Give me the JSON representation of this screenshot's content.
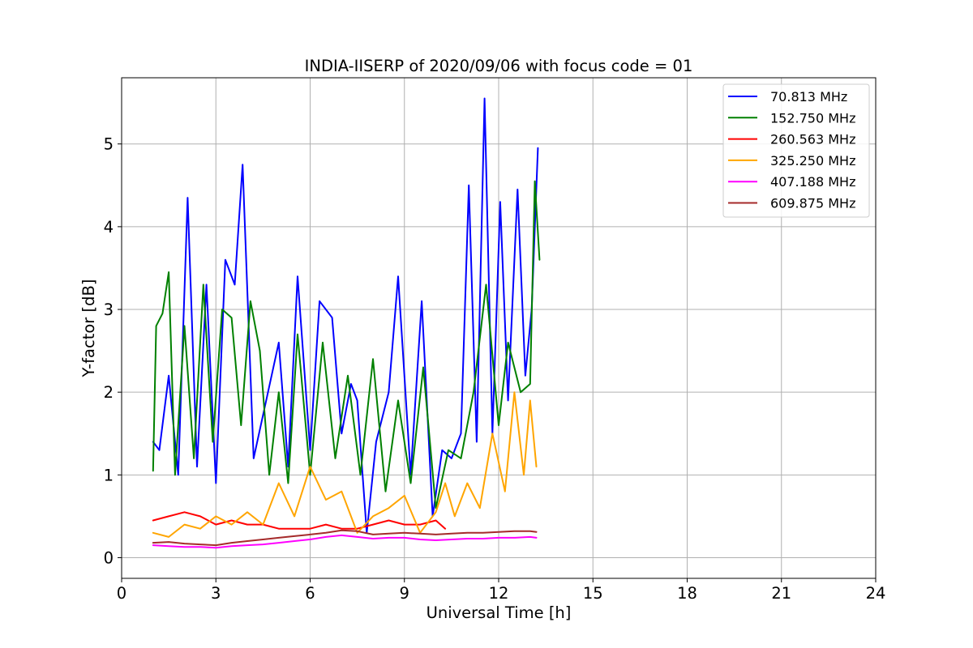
{
  "chart_data": {
    "type": "line",
    "title": "INDIA-IISERP of 2020/09/06 with focus code = 01",
    "xlabel": "Universal Time [h]",
    "ylabel": "Y-factor [dB]",
    "xlim": [
      0,
      24
    ],
    "ylim": [
      -0.25,
      5.8
    ],
    "xticks": [
      0,
      3,
      6,
      9,
      12,
      15,
      18,
      21,
      24
    ],
    "yticks": [
      0,
      1,
      2,
      3,
      4,
      5
    ],
    "grid": true,
    "legend_position": "top-right",
    "series": [
      {
        "name": " 70.813 MHz",
        "color": "#0000ff",
        "x": [
          1.0,
          1.2,
          1.5,
          1.8,
          2.1,
          2.4,
          2.7,
          3.0,
          3.3,
          3.6,
          3.85,
          4.2,
          4.6,
          5.0,
          5.3,
          5.6,
          6.0,
          6.3,
          6.7,
          7.0,
          7.3,
          7.5,
          7.8,
          8.1,
          8.5,
          8.8,
          9.2,
          9.55,
          9.9,
          10.2,
          10.5,
          10.8,
          11.05,
          11.3,
          11.55,
          11.8,
          12.05,
          12.3,
          12.6,
          12.85,
          13.05,
          13.25
        ],
        "y": [
          1.4,
          1.3,
          2.2,
          1.0,
          4.35,
          1.1,
          3.3,
          0.9,
          3.6,
          3.3,
          4.75,
          1.2,
          1.9,
          2.6,
          1.1,
          3.4,
          1.3,
          3.1,
          2.9,
          1.5,
          2.1,
          1.9,
          0.3,
          1.4,
          2.0,
          3.4,
          1.0,
          3.1,
          0.5,
          1.3,
          1.2,
          1.5,
          4.5,
          1.4,
          5.55,
          1.5,
          4.3,
          1.9,
          4.45,
          2.2,
          3.0,
          4.95
        ]
      },
      {
        "name": "152.750 MHz",
        "color": "#008000",
        "x": [
          1.0,
          1.1,
          1.3,
          1.5,
          1.7,
          2.0,
          2.3,
          2.6,
          2.9,
          3.2,
          3.5,
          3.8,
          4.1,
          4.4,
          4.7,
          5.0,
          5.3,
          5.6,
          6.0,
          6.4,
          6.8,
          7.2,
          7.6,
          8.0,
          8.4,
          8.8,
          9.2,
          9.6,
          10.0,
          10.4,
          10.8,
          11.2,
          11.6,
          12.0,
          12.3,
          12.7,
          13.0,
          13.15,
          13.3
        ],
        "y": [
          1.05,
          2.8,
          2.95,
          3.45,
          1.0,
          2.8,
          1.2,
          3.3,
          1.4,
          3.0,
          2.9,
          1.6,
          3.1,
          2.5,
          1.0,
          2.0,
          0.9,
          2.7,
          1.0,
          2.6,
          1.2,
          2.2,
          1.0,
          2.4,
          0.8,
          1.9,
          0.9,
          2.3,
          0.6,
          1.3,
          1.2,
          2.0,
          3.3,
          1.6,
          2.6,
          2.0,
          2.1,
          4.55,
          3.6
        ]
      },
      {
        "name": "260.563 MHz",
        "color": "#ff0000",
        "x": [
          1.0,
          1.5,
          2.0,
          2.5,
          3.0,
          3.5,
          4.0,
          4.5,
          5.0,
          5.5,
          6.0,
          6.5,
          7.0,
          7.5,
          8.0,
          8.5,
          9.0,
          9.5,
          10.0,
          10.3
        ],
        "y": [
          0.45,
          0.5,
          0.55,
          0.5,
          0.4,
          0.45,
          0.4,
          0.4,
          0.35,
          0.35,
          0.35,
          0.4,
          0.35,
          0.35,
          0.4,
          0.45,
          0.4,
          0.4,
          0.45,
          0.35
        ]
      },
      {
        "name": "325.250 MHz",
        "color": "#ffa500",
        "x": [
          1.0,
          1.5,
          2.0,
          2.5,
          3.0,
          3.5,
          4.0,
          4.5,
          5.0,
          5.5,
          6.0,
          6.5,
          7.0,
          7.5,
          8.0,
          8.5,
          9.0,
          9.5,
          10.0,
          10.3,
          10.6,
          11.0,
          11.4,
          11.8,
          12.2,
          12.5,
          12.8,
          13.0,
          13.2
        ],
        "y": [
          0.3,
          0.25,
          0.4,
          0.35,
          0.5,
          0.4,
          0.55,
          0.4,
          0.9,
          0.5,
          1.1,
          0.7,
          0.8,
          0.3,
          0.5,
          0.6,
          0.75,
          0.3,
          0.55,
          0.9,
          0.5,
          0.9,
          0.6,
          1.5,
          0.8,
          2.0,
          1.0,
          1.9,
          1.1
        ]
      },
      {
        "name": "407.188 MHz",
        "color": "#ff00ff",
        "x": [
          1.0,
          1.5,
          2.0,
          2.5,
          3.0,
          3.5,
          4.0,
          4.5,
          5.0,
          5.5,
          6.0,
          6.5,
          7.0,
          7.5,
          8.0,
          8.5,
          9.0,
          9.5,
          10.0,
          10.5,
          11.0,
          11.5,
          12.0,
          12.5,
          13.0,
          13.2
        ],
        "y": [
          0.15,
          0.14,
          0.13,
          0.13,
          0.12,
          0.14,
          0.15,
          0.16,
          0.18,
          0.2,
          0.22,
          0.25,
          0.27,
          0.25,
          0.23,
          0.24,
          0.24,
          0.22,
          0.21,
          0.22,
          0.23,
          0.23,
          0.24,
          0.24,
          0.25,
          0.24
        ]
      },
      {
        "name": "609.875 MHz",
        "color": "#a52a2a",
        "x": [
          1.0,
          1.5,
          2.0,
          2.5,
          3.0,
          3.5,
          4.0,
          4.5,
          5.0,
          5.5,
          6.0,
          6.5,
          7.0,
          7.5,
          8.0,
          8.5,
          9.0,
          9.5,
          10.0,
          10.5,
          11.0,
          11.5,
          12.0,
          12.5,
          13.0,
          13.2
        ],
        "y": [
          0.18,
          0.19,
          0.17,
          0.16,
          0.15,
          0.18,
          0.2,
          0.22,
          0.24,
          0.26,
          0.28,
          0.3,
          0.33,
          0.32,
          0.28,
          0.29,
          0.3,
          0.29,
          0.28,
          0.29,
          0.3,
          0.3,
          0.31,
          0.32,
          0.32,
          0.31
        ]
      }
    ]
  }
}
